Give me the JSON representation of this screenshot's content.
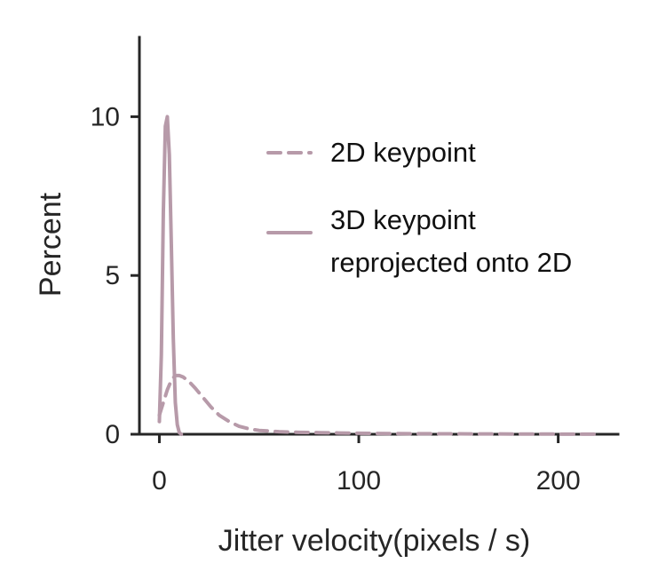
{
  "chart_data": {
    "type": "line",
    "xlabel": "Jitter velocity(pixels / s)",
    "ylabel": "Percent",
    "xlim": [
      -10,
      230
    ],
    "ylim": [
      0,
      12.5
    ],
    "xticks": [
      0,
      100,
      200
    ],
    "xtick_labels": [
      "0",
      "100",
      "200"
    ],
    "yticks": [
      0,
      5,
      10
    ],
    "ytick_labels": [
      "0",
      "5",
      "10"
    ],
    "grid": false,
    "legend_position": "upper-right",
    "colors": {
      "series": "#b79aa9",
      "axis": "#262626"
    },
    "series": [
      {
        "name": "2D keypoint",
        "style": "dashed",
        "x": [
          0,
          2,
          4,
          6,
          8,
          10,
          12,
          15,
          18,
          22,
          26,
          30,
          35,
          40,
          45,
          50,
          60,
          70,
          80,
          90,
          100,
          120,
          140,
          160,
          180,
          200,
          220
        ],
        "y": [
          0.6,
          1.0,
          1.4,
          1.7,
          1.85,
          1.85,
          1.8,
          1.65,
          1.45,
          1.15,
          0.85,
          0.6,
          0.4,
          0.25,
          0.17,
          0.12,
          0.08,
          0.06,
          0.05,
          0.04,
          0.03,
          0.02,
          0.015,
          0.01,
          0.008,
          0.005,
          0.003
        ]
      },
      {
        "name": "3D keypoint\nreprojected onto 2D",
        "style": "solid",
        "x": [
          0,
          1,
          2,
          3,
          4,
          5,
          6,
          7,
          8,
          9,
          10,
          11
        ],
        "y": [
          0.4,
          2.5,
          7.0,
          9.7,
          10.0,
          8.8,
          6.0,
          3.0,
          1.0,
          0.3,
          0.05,
          0.0
        ]
      }
    ]
  }
}
